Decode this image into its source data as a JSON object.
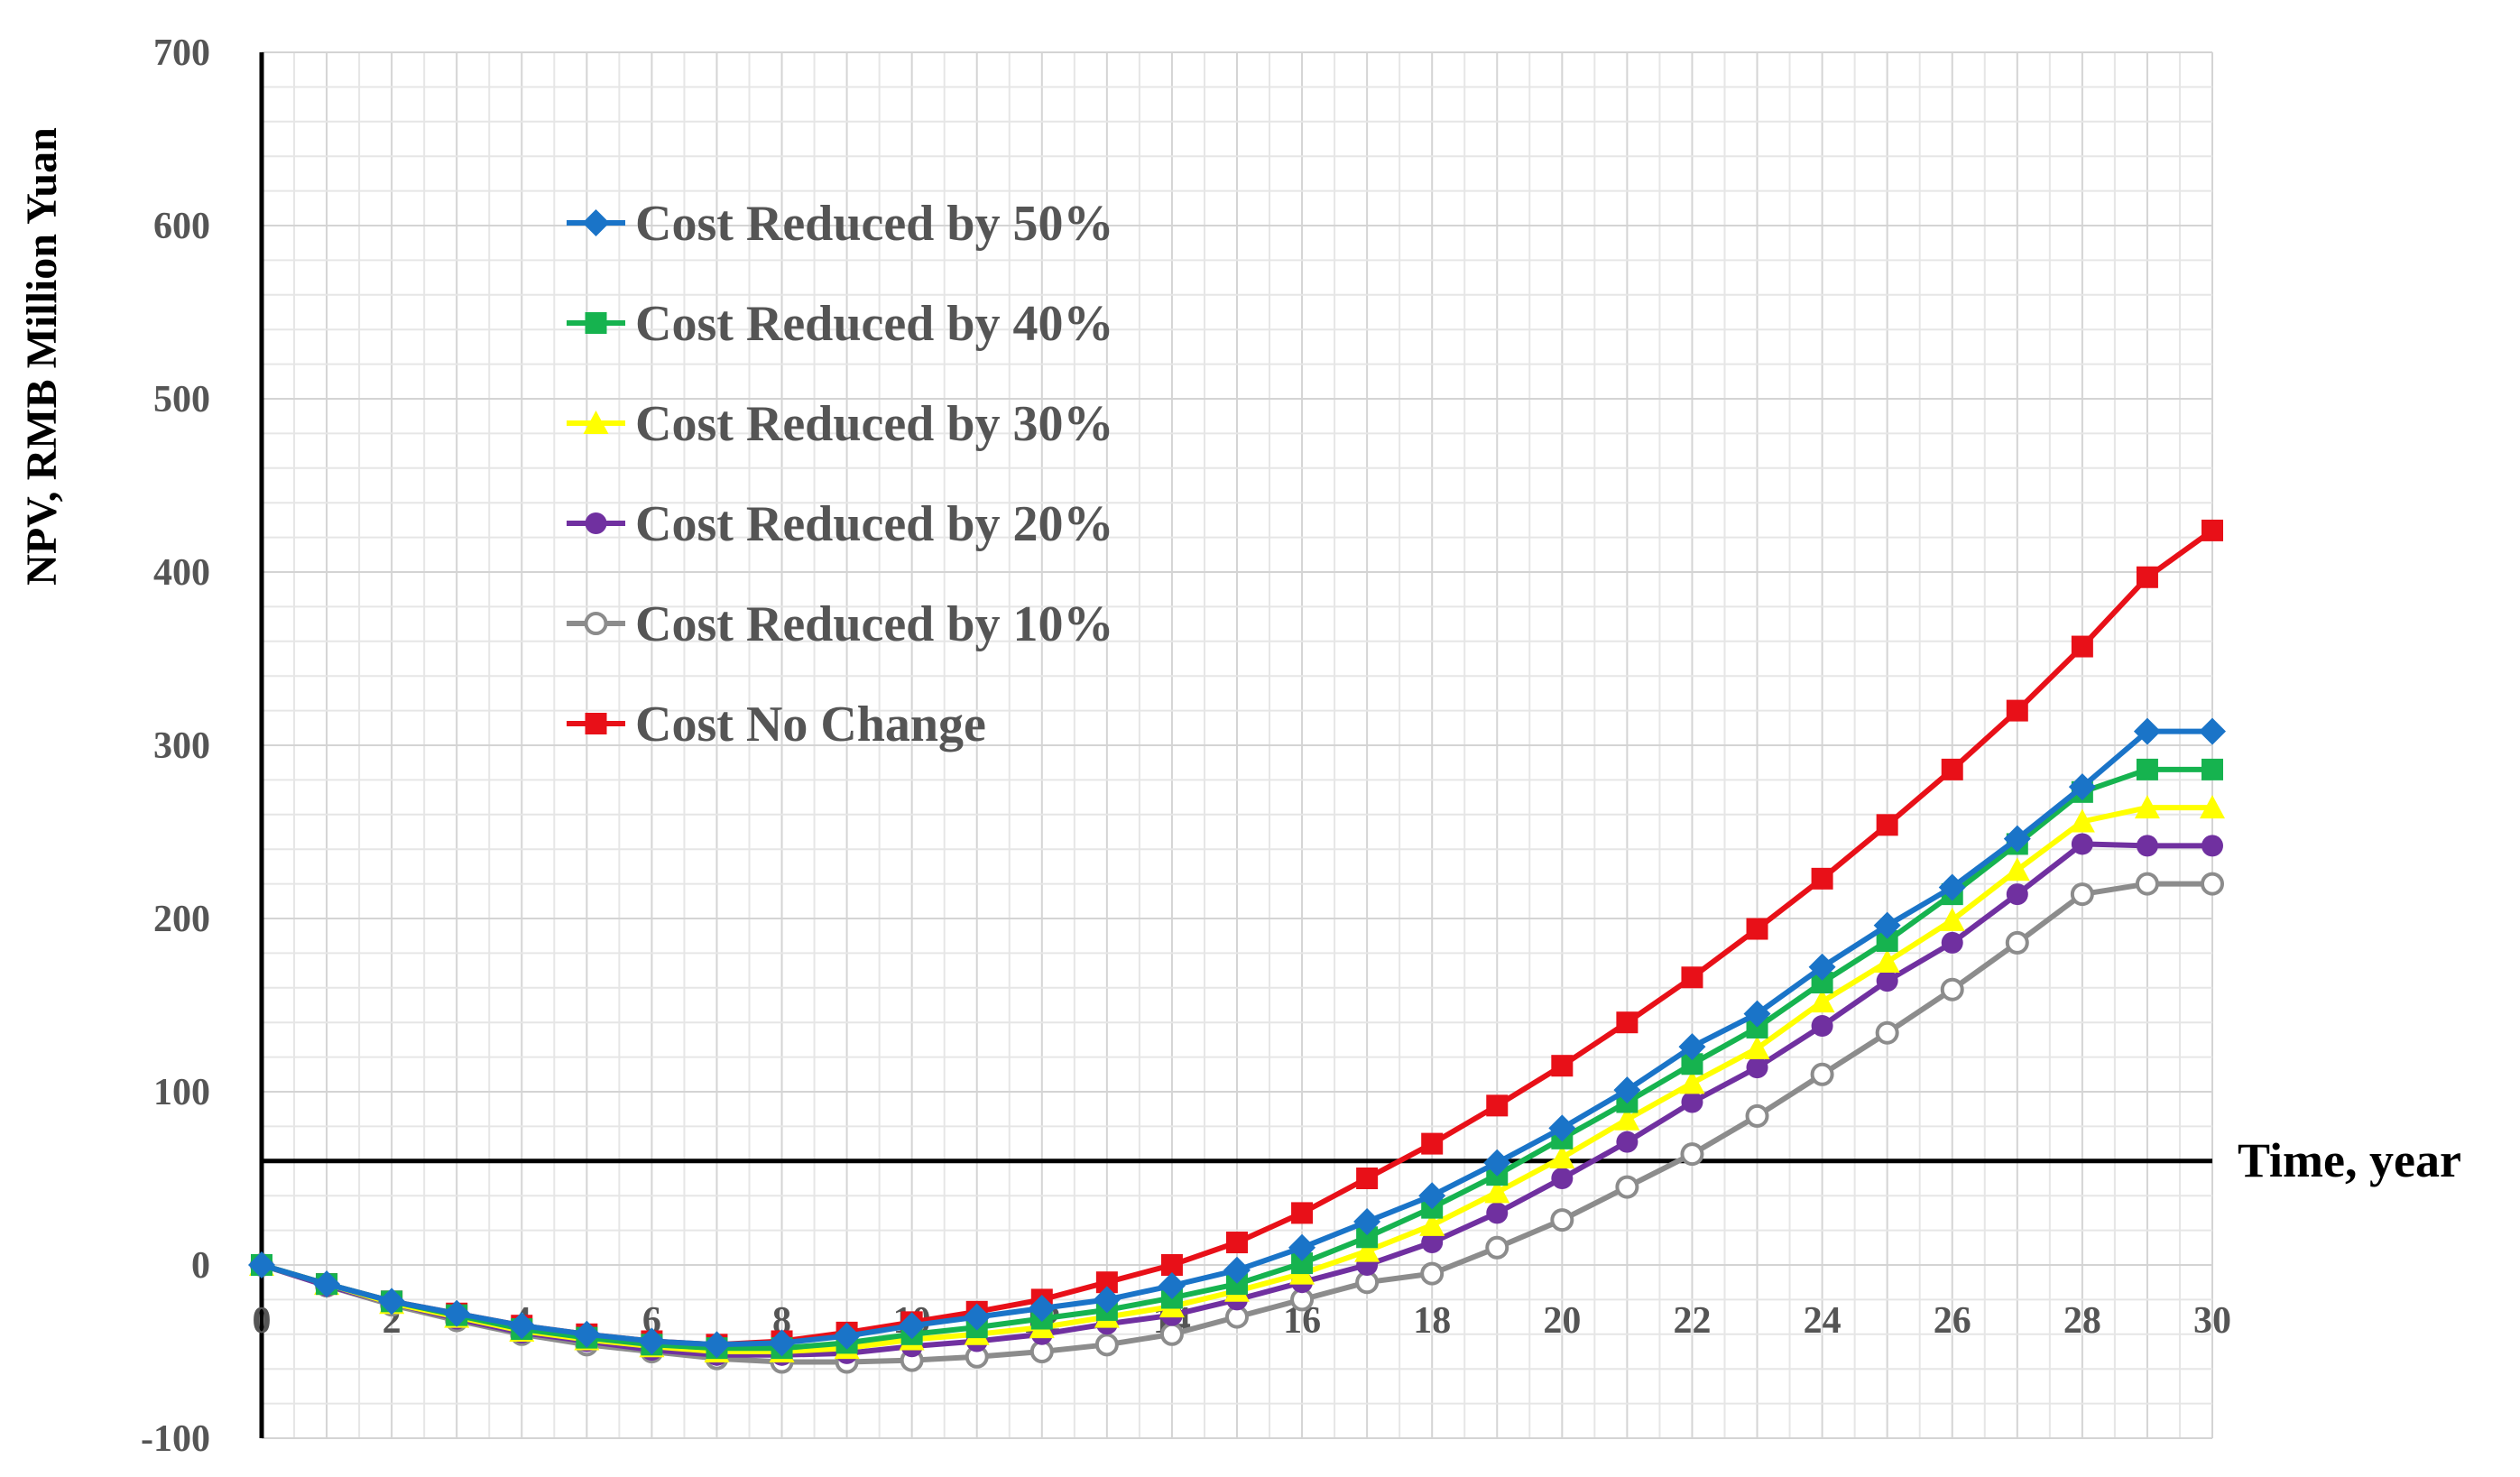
{
  "chart_data": {
    "type": "line",
    "title": "",
    "xlabel": "Time, year",
    "ylabel": "NPV, RMB Million Yuan",
    "xlim": [
      0,
      30
    ],
    "ylim": [
      -100,
      700
    ],
    "x_origin_value": 0,
    "y_axis_ref_value": 60,
    "x_ticks": [
      "0",
      "2",
      "4",
      "6",
      "8",
      "10",
      "12",
      "14",
      "16",
      "18",
      "20",
      "22",
      "24",
      "26",
      "28",
      "30"
    ],
    "y_ticks": [
      "700",
      "600",
      "500",
      "400",
      "300",
      "200",
      "100",
      "0",
      "-100"
    ],
    "grid": true,
    "legend_position": "top-left",
    "x": [
      0,
      1,
      2,
      3,
      4,
      5,
      6,
      7,
      8,
      9,
      10,
      11,
      12,
      13,
      14,
      15,
      16,
      17,
      18,
      19,
      20,
      21,
      22,
      23,
      24,
      25,
      26,
      27,
      28,
      29,
      30
    ],
    "series": [
      {
        "name": "Cost Reduced by 50%",
        "color": "#1a74c8",
        "marker": "diamond",
        "values": [
          0,
          -11,
          -21,
          -28,
          -35,
          -40,
          -44,
          -46,
          -45,
          -41,
          -35,
          -30,
          -25,
          -20,
          -12,
          -3,
          10,
          25,
          40,
          59,
          79,
          101,
          126,
          145,
          172,
          196,
          218,
          246,
          276,
          308,
          308
        ]
      },
      {
        "name": "Cost Reduced by 40%",
        "color": "#16b34f",
        "marker": "square",
        "values": [
          0,
          -11,
          -21,
          -29,
          -37,
          -42,
          -46,
          -48,
          -48,
          -45,
          -40,
          -36,
          -31,
          -26,
          -19,
          -11,
          1,
          16,
          33,
          52,
          73,
          94,
          116,
          137,
          163,
          187,
          214,
          243,
          273,
          286,
          286
        ]
      },
      {
        "name": "Cost Reduced by 30%",
        "color": "#ffff00",
        "marker": "triangle",
        "values": [
          0,
          -11,
          -22,
          -30,
          -38,
          -43,
          -47,
          -50,
          -50,
          -48,
          -43,
          -40,
          -36,
          -30,
          -24,
          -15,
          -5,
          8,
          23,
          42,
          62,
          84,
          105,
          125,
          152,
          175,
          199,
          228,
          256,
          264,
          264
        ]
      },
      {
        "name": "Cost Reduced by 20%",
        "color": "#7030a0",
        "marker": "circle",
        "values": [
          0,
          -12,
          -22,
          -31,
          -39,
          -44,
          -49,
          -52,
          -52,
          -51,
          -47,
          -44,
          -40,
          -34,
          -29,
          -20,
          -10,
          0,
          13,
          30,
          50,
          71,
          94,
          114,
          138,
          164,
          186,
          214,
          243,
          242,
          242
        ]
      },
      {
        "name": "Cost Reduced by 10%",
        "color": "#8c8c8c",
        "marker": "circle-open",
        "values": [
          0,
          -12,
          -23,
          -32,
          -40,
          -46,
          -50,
          -54,
          -56,
          -56,
          -55,
          -53,
          -50,
          -46,
          -40,
          -30,
          -20,
          -10,
          -5,
          10,
          26,
          45,
          64,
          86,
          110,
          134,
          159,
          186,
          214,
          220,
          220
        ]
      },
      {
        "name": "Cost No Change",
        "color": "#e81018",
        "marker": "square",
        "values": [
          0,
          -11,
          -21,
          -28,
          -35,
          -40,
          -44,
          -46,
          -44,
          -39,
          -33,
          -27,
          -20,
          -10,
          0,
          13,
          30,
          50,
          70,
          92,
          115,
          140,
          166,
          194,
          223,
          254,
          286,
          320,
          357,
          397,
          424
        ]
      }
    ]
  }
}
